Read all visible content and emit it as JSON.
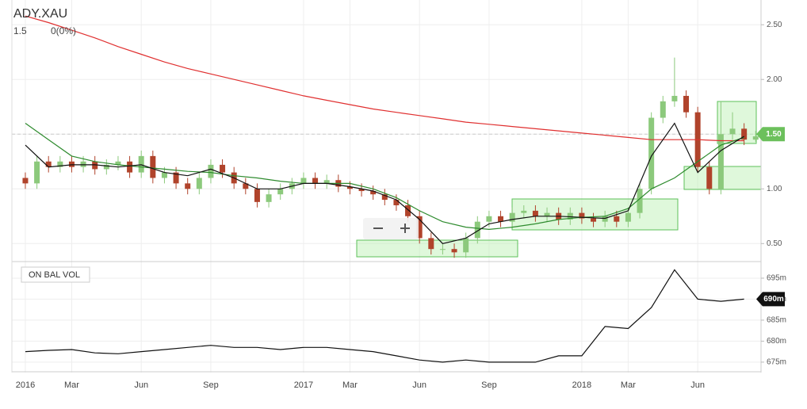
{
  "chart_data": [
    {
      "type": "candlestick",
      "title": "ADY.XAU",
      "last": "1.5",
      "change": "0(0%)",
      "x": [
        0,
        0.5,
        1,
        1.5,
        2,
        2.5,
        3,
        3.5,
        4,
        4.5,
        5,
        5.5,
        6,
        6.5,
        7,
        7.5,
        8,
        8.5,
        9,
        9.5,
        10,
        10.5,
        11,
        11.5,
        12,
        12.5,
        13,
        13.5,
        14,
        14.5,
        15,
        15.5,
        16,
        16.5,
        17,
        17.5,
        18,
        18.5,
        19,
        19.5,
        20,
        20.5,
        21,
        21.5,
        22,
        22.5,
        23,
        23.5,
        24,
        24.5,
        25,
        25.5,
        26,
        26.5,
        27,
        27.5,
        28,
        28.5,
        29,
        29.5,
        30,
        30.5,
        31,
        31.5
      ],
      "open": [
        1.1,
        1.05,
        1.25,
        1.2,
        1.25,
        1.2,
        1.25,
        1.18,
        1.22,
        1.25,
        1.15,
        1.3,
        1.1,
        1.15,
        1.05,
        1.0,
        1.1,
        1.22,
        1.15,
        1.05,
        1.0,
        0.88,
        0.95,
        1.0,
        1.05,
        1.1,
        1.05,
        1.08,
        1.02,
        1.0,
        0.98,
        0.95,
        0.9,
        0.85,
        0.75,
        0.55,
        0.45,
        0.45,
        0.42,
        0.55,
        0.7,
        0.75,
        0.7,
        0.78,
        0.8,
        0.75,
        0.78,
        0.72,
        0.78,
        0.73,
        0.7,
        0.75,
        0.7,
        0.78,
        1.0,
        1.65,
        1.8,
        1.85,
        1.7,
        1.2,
        1.0,
        1.5,
        1.55,
        1.45
      ],
      "high": [
        1.15,
        1.3,
        1.3,
        1.3,
        1.3,
        1.3,
        1.3,
        1.27,
        1.3,
        1.3,
        1.35,
        1.35,
        1.2,
        1.2,
        1.1,
        1.15,
        1.27,
        1.27,
        1.2,
        1.1,
        1.05,
        1.0,
        1.05,
        1.1,
        1.15,
        1.15,
        1.13,
        1.13,
        1.07,
        1.05,
        1.03,
        1.0,
        0.95,
        0.9,
        0.8,
        0.6,
        0.5,
        0.5,
        0.6,
        0.75,
        0.8,
        0.8,
        0.83,
        0.85,
        0.85,
        0.83,
        0.83,
        0.83,
        0.83,
        0.78,
        0.8,
        0.8,
        0.83,
        1.05,
        1.7,
        1.85,
        2.2,
        1.9,
        1.75,
        1.25,
        1.8,
        1.7,
        1.6,
        1.53
      ],
      "low": [
        1.0,
        1.0,
        1.15,
        1.15,
        1.15,
        1.15,
        1.13,
        1.13,
        1.17,
        1.1,
        1.1,
        1.05,
        1.05,
        1.0,
        0.95,
        0.95,
        1.05,
        1.1,
        1.0,
        0.95,
        0.83,
        0.83,
        0.9,
        0.95,
        1.0,
        1.0,
        1.0,
        0.97,
        0.95,
        0.93,
        0.9,
        0.85,
        0.8,
        0.7,
        0.5,
        0.4,
        0.4,
        0.37,
        0.37,
        0.5,
        0.65,
        0.65,
        0.65,
        0.73,
        0.7,
        0.7,
        0.67,
        0.67,
        0.68,
        0.65,
        0.65,
        0.65,
        0.65,
        0.73,
        0.95,
        1.6,
        1.75,
        1.65,
        1.15,
        0.95,
        0.95,
        1.45,
        1.4,
        1.43
      ],
      "close": [
        1.05,
        1.25,
        1.2,
        1.25,
        1.2,
        1.25,
        1.18,
        1.22,
        1.25,
        1.15,
        1.3,
        1.1,
        1.15,
        1.05,
        1.0,
        1.1,
        1.22,
        1.15,
        1.05,
        1.0,
        0.88,
        0.95,
        1.0,
        1.05,
        1.1,
        1.05,
        1.08,
        1.02,
        1.0,
        0.98,
        0.95,
        0.9,
        0.85,
        0.75,
        0.55,
        0.45,
        0.45,
        0.42,
        0.55,
        0.7,
        0.75,
        0.7,
        0.78,
        0.8,
        0.75,
        0.78,
        0.72,
        0.78,
        0.73,
        0.7,
        0.75,
        0.7,
        0.78,
        1.0,
        1.65,
        1.8,
        1.85,
        1.7,
        1.2,
        1.0,
        1.5,
        1.55,
        1.45,
        1.48
      ],
      "up_color": "#8cc97c",
      "down_color": "#b0432b",
      "series": [
        {
          "color": "#e03030",
          "x": [
            0,
            1,
            2,
            3,
            4,
            5,
            6,
            7,
            8,
            9,
            10,
            11,
            12,
            13,
            14,
            15,
            16,
            17,
            18,
            19,
            20,
            21,
            22,
            23,
            24,
            25,
            26,
            27,
            28,
            29,
            30,
            31
          ],
          "values": [
            2.58,
            2.52,
            2.45,
            2.38,
            2.3,
            2.23,
            2.16,
            2.1,
            2.05,
            2.0,
            1.95,
            1.9,
            1.85,
            1.81,
            1.77,
            1.73,
            1.7,
            1.67,
            1.64,
            1.61,
            1.59,
            1.57,
            1.55,
            1.53,
            1.51,
            1.49,
            1.47,
            1.45,
            1.45,
            1.45,
            1.44,
            1.44
          ]
        },
        {
          "color": "#2e8b2e",
          "x": [
            0,
            1,
            2,
            3,
            4,
            5,
            6,
            7,
            8,
            9,
            10,
            11,
            12,
            13,
            14,
            15,
            16,
            17,
            18,
            19,
            20,
            21,
            22,
            23,
            24,
            25,
            26,
            27,
            28,
            29,
            30,
            31
          ],
          "values": [
            1.6,
            1.45,
            1.3,
            1.25,
            1.22,
            1.2,
            1.18,
            1.16,
            1.15,
            1.12,
            1.1,
            1.07,
            1.05,
            1.05,
            1.05,
            1.0,
            0.92,
            0.8,
            0.7,
            0.65,
            0.63,
            0.65,
            0.68,
            0.72,
            0.74,
            0.75,
            0.82,
            1.0,
            1.1,
            1.25,
            1.4,
            1.47
          ]
        },
        {
          "color": "#111111",
          "x": [
            0,
            1,
            2,
            3,
            4,
            5,
            6,
            7,
            8,
            9,
            10,
            11,
            12,
            13,
            14,
            15,
            16,
            17,
            18,
            19,
            20,
            21,
            22,
            23,
            24,
            25,
            26,
            27,
            28,
            29,
            30,
            31
          ],
          "values": [
            1.4,
            1.2,
            1.22,
            1.22,
            1.2,
            1.22,
            1.15,
            1.12,
            1.18,
            1.1,
            1.0,
            1.0,
            1.05,
            1.05,
            1.02,
            0.98,
            0.9,
            0.72,
            0.5,
            0.55,
            0.68,
            0.72,
            0.75,
            0.75,
            0.74,
            0.73,
            0.8,
            1.3,
            1.6,
            1.15,
            1.35,
            1.48
          ]
        }
      ],
      "price_tag": {
        "value": 1.5,
        "label": "1.50"
      },
      "xlim": [
        -0.58,
        31.73
      ],
      "xticks": [
        {
          "value": 0,
          "label": "2016"
        },
        {
          "value": 2,
          "label": "Mar"
        },
        {
          "value": 5,
          "label": "Jun"
        },
        {
          "value": 8,
          "label": "Sep"
        },
        {
          "value": 12,
          "label": "2017"
        },
        {
          "value": 14,
          "label": "Mar"
        },
        {
          "value": 17,
          "label": "Jun"
        },
        {
          "value": 20,
          "label": "Sep"
        },
        {
          "value": 24,
          "label": "2018"
        },
        {
          "value": 26,
          "label": "Mar"
        },
        {
          "value": 29,
          "label": "Jun"
        }
      ],
      "ylim": [
        0.35,
        2.69
      ],
      "yticks": [
        {
          "value": 0.5,
          "label": "0.50"
        },
        {
          "value": 1,
          "label": "1.00"
        },
        {
          "value": 1.5,
          "label": "1.50"
        },
        {
          "value": 2,
          "label": "2.00"
        },
        {
          "value": 2.5,
          "label": "2.50"
        }
      ],
      "grid": true
    },
    {
      "type": "line",
      "title": "ON BAL VOL",
      "series": [
        {
          "color": "#111111",
          "x": [
            0,
            1,
            2,
            3,
            4,
            5,
            6,
            7,
            8,
            9,
            10,
            11,
            12,
            13,
            14,
            15,
            16,
            17,
            18,
            19,
            20,
            21,
            22,
            23,
            24,
            25,
            26,
            27,
            28,
            29,
            30,
            31
          ],
          "values": [
            677.5,
            677.8,
            678,
            677.2,
            677,
            677.5,
            678,
            678.5,
            679,
            678.5,
            678.5,
            678,
            678.5,
            678.5,
            678,
            677.5,
            676.5,
            675.5,
            675,
            675.5,
            675,
            675,
            675,
            676.5,
            676.5,
            683.5,
            683,
            688,
            697,
            690,
            689.5,
            690
          ]
        }
      ],
      "price_tag": {
        "value": 690,
        "label": "690m"
      },
      "ylim": [
        672.9,
        698.2
      ],
      "yticks": [
        {
          "value": 675,
          "label": "675m"
        },
        {
          "value": 680,
          "label": "680m"
        },
        {
          "value": 685,
          "label": "685m"
        },
        {
          "value": 690,
          "label": "690m"
        },
        {
          "value": 695,
          "label": "695m"
        }
      ],
      "grid": true
    }
  ]
}
